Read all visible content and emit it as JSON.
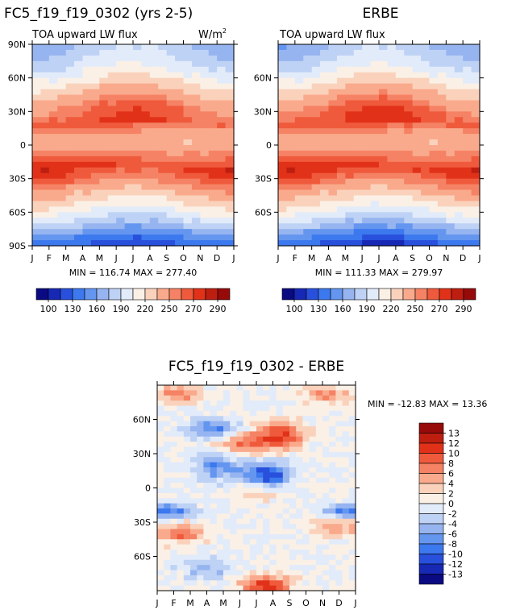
{
  "chart_data": [
    {
      "type": "heatmap",
      "title": "FC5_f19_f19_0302 (yrs 2-5)",
      "subtitle": "TOA upward LW flux",
      "units": "W/m",
      "units_sup": "2",
      "xlabels": [
        "J",
        "F",
        "M",
        "A",
        "M",
        "J",
        "J",
        "A",
        "S",
        "O",
        "N",
        "D",
        "J"
      ],
      "ylabels": [
        "90N",
        "60N",
        "30N",
        "0",
        "30S",
        "60S",
        "90S"
      ],
      "ylim": [
        -90,
        90
      ],
      "stats": "MIN = 116.74 MAX = 277.40",
      "min": 116.74,
      "max": 277.4,
      "colorbar_labels": [
        "100",
        "130",
        "160",
        "190",
        "220",
        "250",
        "270",
        "290"
      ],
      "profile": {
        "lat": [
          90,
          80,
          70,
          60,
          50,
          40,
          30,
          20,
          10,
          0,
          -10,
          -20,
          -30,
          -40,
          -50,
          -60,
          -70,
          -80,
          -90
        ],
        "flux": [
          175,
          185,
          197,
          212,
          230,
          248,
          260,
          268,
          245,
          238,
          258,
          272,
          262,
          240,
          222,
          205,
          180,
          150,
          125
        ]
      }
    },
    {
      "type": "heatmap",
      "title": "ERBE",
      "subtitle": "TOA upward LW flux",
      "xlabels": [
        "J",
        "F",
        "M",
        "A",
        "M",
        "J",
        "J",
        "A",
        "S",
        "O",
        "N",
        "D",
        "J"
      ],
      "ylabels": [
        "60N",
        "30N",
        "0",
        "30S",
        "60S"
      ],
      "ylim": [
        -90,
        90
      ],
      "stats": "MIN = 111.33 MAX = 279.97",
      "min": 111.33,
      "max": 279.97,
      "colorbar_labels": [
        "100",
        "130",
        "160",
        "190",
        "220",
        "250",
        "270",
        "290"
      ],
      "profile": {
        "lat": [
          90,
          80,
          70,
          60,
          50,
          40,
          30,
          20,
          10,
          0,
          -10,
          -20,
          -30,
          -40,
          -50,
          -60,
          -70,
          -80,
          -90
        ],
        "flux": [
          172,
          183,
          196,
          213,
          232,
          249,
          262,
          270,
          246,
          238,
          258,
          275,
          262,
          240,
          221,
          203,
          177,
          145,
          118
        ]
      }
    },
    {
      "type": "heatmap",
      "title": "FC5_f19_f19_0302 - ERBE",
      "xlabels": [
        "J",
        "F",
        "M",
        "A",
        "M",
        "J",
        "J",
        "A",
        "S",
        "O",
        "N",
        "D",
        "J"
      ],
      "ylabels": [
        "60N",
        "30N",
        "0",
        "30S",
        "60S"
      ],
      "ylim": [
        -90,
        90
      ],
      "stats": "MIN = -12.83 MAX =  13.36",
      "min": -12.83,
      "max": 13.36,
      "colorbar_labels": [
        "13",
        "12",
        "10",
        "8",
        "6",
        "4",
        "2",
        "0",
        "-2",
        "-4",
        "-6",
        "-8",
        "-10",
        "-12",
        "-13"
      ]
    }
  ],
  "colors": {
    "abs_palette": [
      "#0a0a82",
      "#1628b4",
      "#2850dc",
      "#3c78ee",
      "#6496f0",
      "#96b4f0",
      "#bed2f5",
      "#e2ebfa",
      "#faf0e6",
      "#fad2bc",
      "#faaa8c",
      "#f58264",
      "#f05a3c",
      "#e13219",
      "#be1e10",
      "#960a0a"
    ],
    "diff_palette": [
      "#960a0a",
      "#be1e10",
      "#e13219",
      "#f05a3c",
      "#f58264",
      "#faaa8c",
      "#fad2bc",
      "#faf0e6",
      "#e2ebfa",
      "#bed2f5",
      "#96b4f0",
      "#6496f0",
      "#3c78ee",
      "#2850dc",
      "#1628b4",
      "#0a0a82"
    ]
  }
}
